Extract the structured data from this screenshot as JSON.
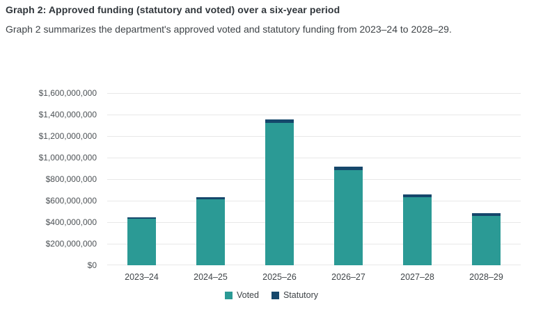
{
  "page": {
    "title": "Graph 2: Approved funding (statutory and voted) over a six-year period",
    "subtitle": "Graph 2 summarizes the department's approved voted and statutory funding from 2023–24 to 2028–29."
  },
  "colors": {
    "voted": "#2b9a95",
    "statutory": "#15476b",
    "gridline": "#e8e8e8",
    "axis_text": "#4d5256",
    "title_text": "#30363b"
  },
  "chart_data": {
    "type": "bar",
    "stacked": true,
    "title": "",
    "xlabel": "",
    "ylabel": "",
    "categories": [
      "2023–24",
      "2024–25",
      "2025–26",
      "2026–27",
      "2027–28",
      "2028–29"
    ],
    "series": [
      {
        "name": "Voted",
        "color": "#2b9a95",
        "values": [
          435000000,
          615000000,
          1325000000,
          885000000,
          635000000,
          455000000
        ]
      },
      {
        "name": "Statutory",
        "color": "#15476b",
        "values": [
          15000000,
          20000000,
          30000000,
          30000000,
          25000000,
          25000000
        ]
      }
    ],
    "totals_approx": [
      450000000,
      635000000,
      1355000000,
      915000000,
      660000000,
      480000000
    ],
    "ylim": [
      0,
      1600000000
    ],
    "y_tick_step": 200000000,
    "y_ticks": [
      "$0",
      "$200,000,000",
      "$400,000,000",
      "$600,000,000",
      "$800,000,000",
      "$1,000,000,000",
      "$1,200,000,000",
      "$1,400,000,000",
      "$1,600,000,000"
    ],
    "grid": "horizontal",
    "legend_position": "bottom-center",
    "legend": [
      "Voted",
      "Statutory"
    ]
  }
}
